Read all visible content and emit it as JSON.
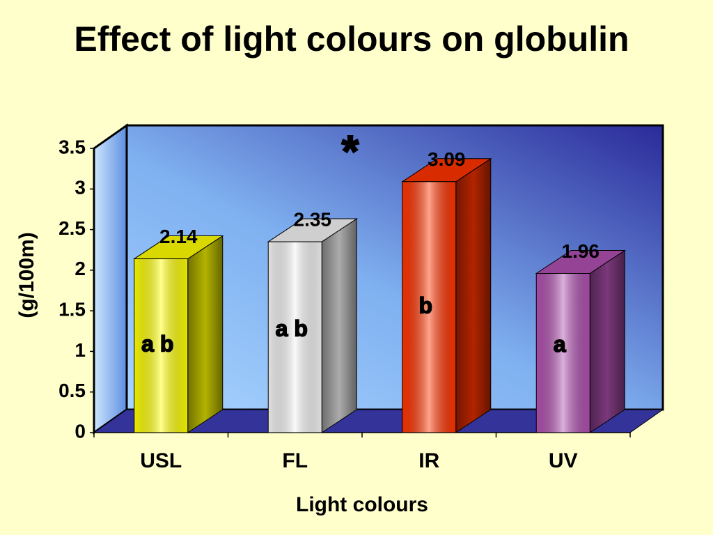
{
  "chart_data": {
    "type": "bar3d",
    "title": "Effect of light colours on globulin",
    "xlabel": "Light colours",
    "ylabel": "(g/100m)",
    "categories": [
      "USL",
      "FL",
      "IR",
      "UV"
    ],
    "values": [
      2.14,
      2.35,
      3.09,
      1.96
    ],
    "colors": [
      "#ffff00",
      "#f4f4f4",
      "#ff3300",
      "#b050b0"
    ],
    "group_letters": [
      "a b",
      "a b",
      "b",
      "a"
    ],
    "annotation": "*",
    "ylim": [
      0,
      3.5
    ],
    "yticks": [
      0,
      0.5,
      1,
      1.5,
      2,
      2.5,
      3,
      3.5
    ],
    "grid": false
  }
}
